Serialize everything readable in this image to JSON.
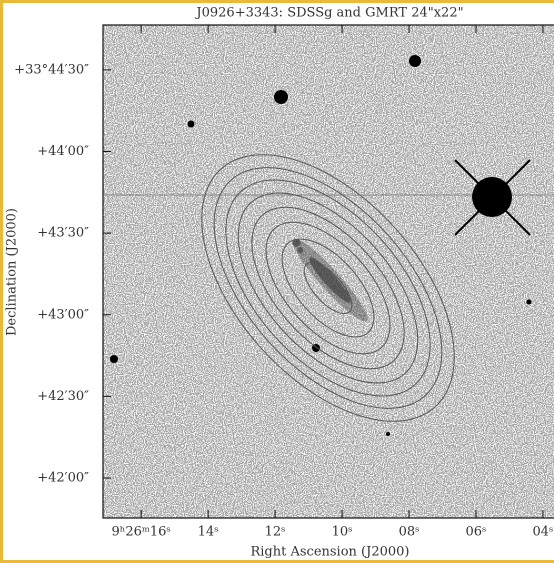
{
  "chart_data": {
    "type": "image",
    "title": "J0926+3343: SDSSg and GMRT 24\"x22\"",
    "xlabel": "Right Ascension (J2000)",
    "ylabel": "Declination (J2000)",
    "xlim": [
      17.14,
      3.67
    ],
    "ylim": [
      2505.3,
      2686.5
    ],
    "xticks": [
      {
        "value": 16,
        "label": "9ʰ26ᵐ16ˢ"
      },
      {
        "value": 14,
        "label": "14ˢ"
      },
      {
        "value": 12,
        "label": "12ˢ"
      },
      {
        "value": 10,
        "label": "10ˢ"
      },
      {
        "value": 8,
        "label": "08ˢ"
      },
      {
        "value": 6,
        "label": "06ˢ"
      },
      {
        "value": 4,
        "label": "04ˢ"
      }
    ],
    "yticks": [
      {
        "value": 2670,
        "label": "+33°44′30″"
      },
      {
        "value": 2640,
        "label": "+44′00″"
      },
      {
        "value": 2610,
        "label": "+43′30″"
      },
      {
        "value": 2580,
        "label": "+43′00″"
      },
      {
        "value": 2550,
        "label": "+42′30″"
      },
      {
        "value": 2520,
        "label": "+42′00″"
      }
    ]
  }
}
